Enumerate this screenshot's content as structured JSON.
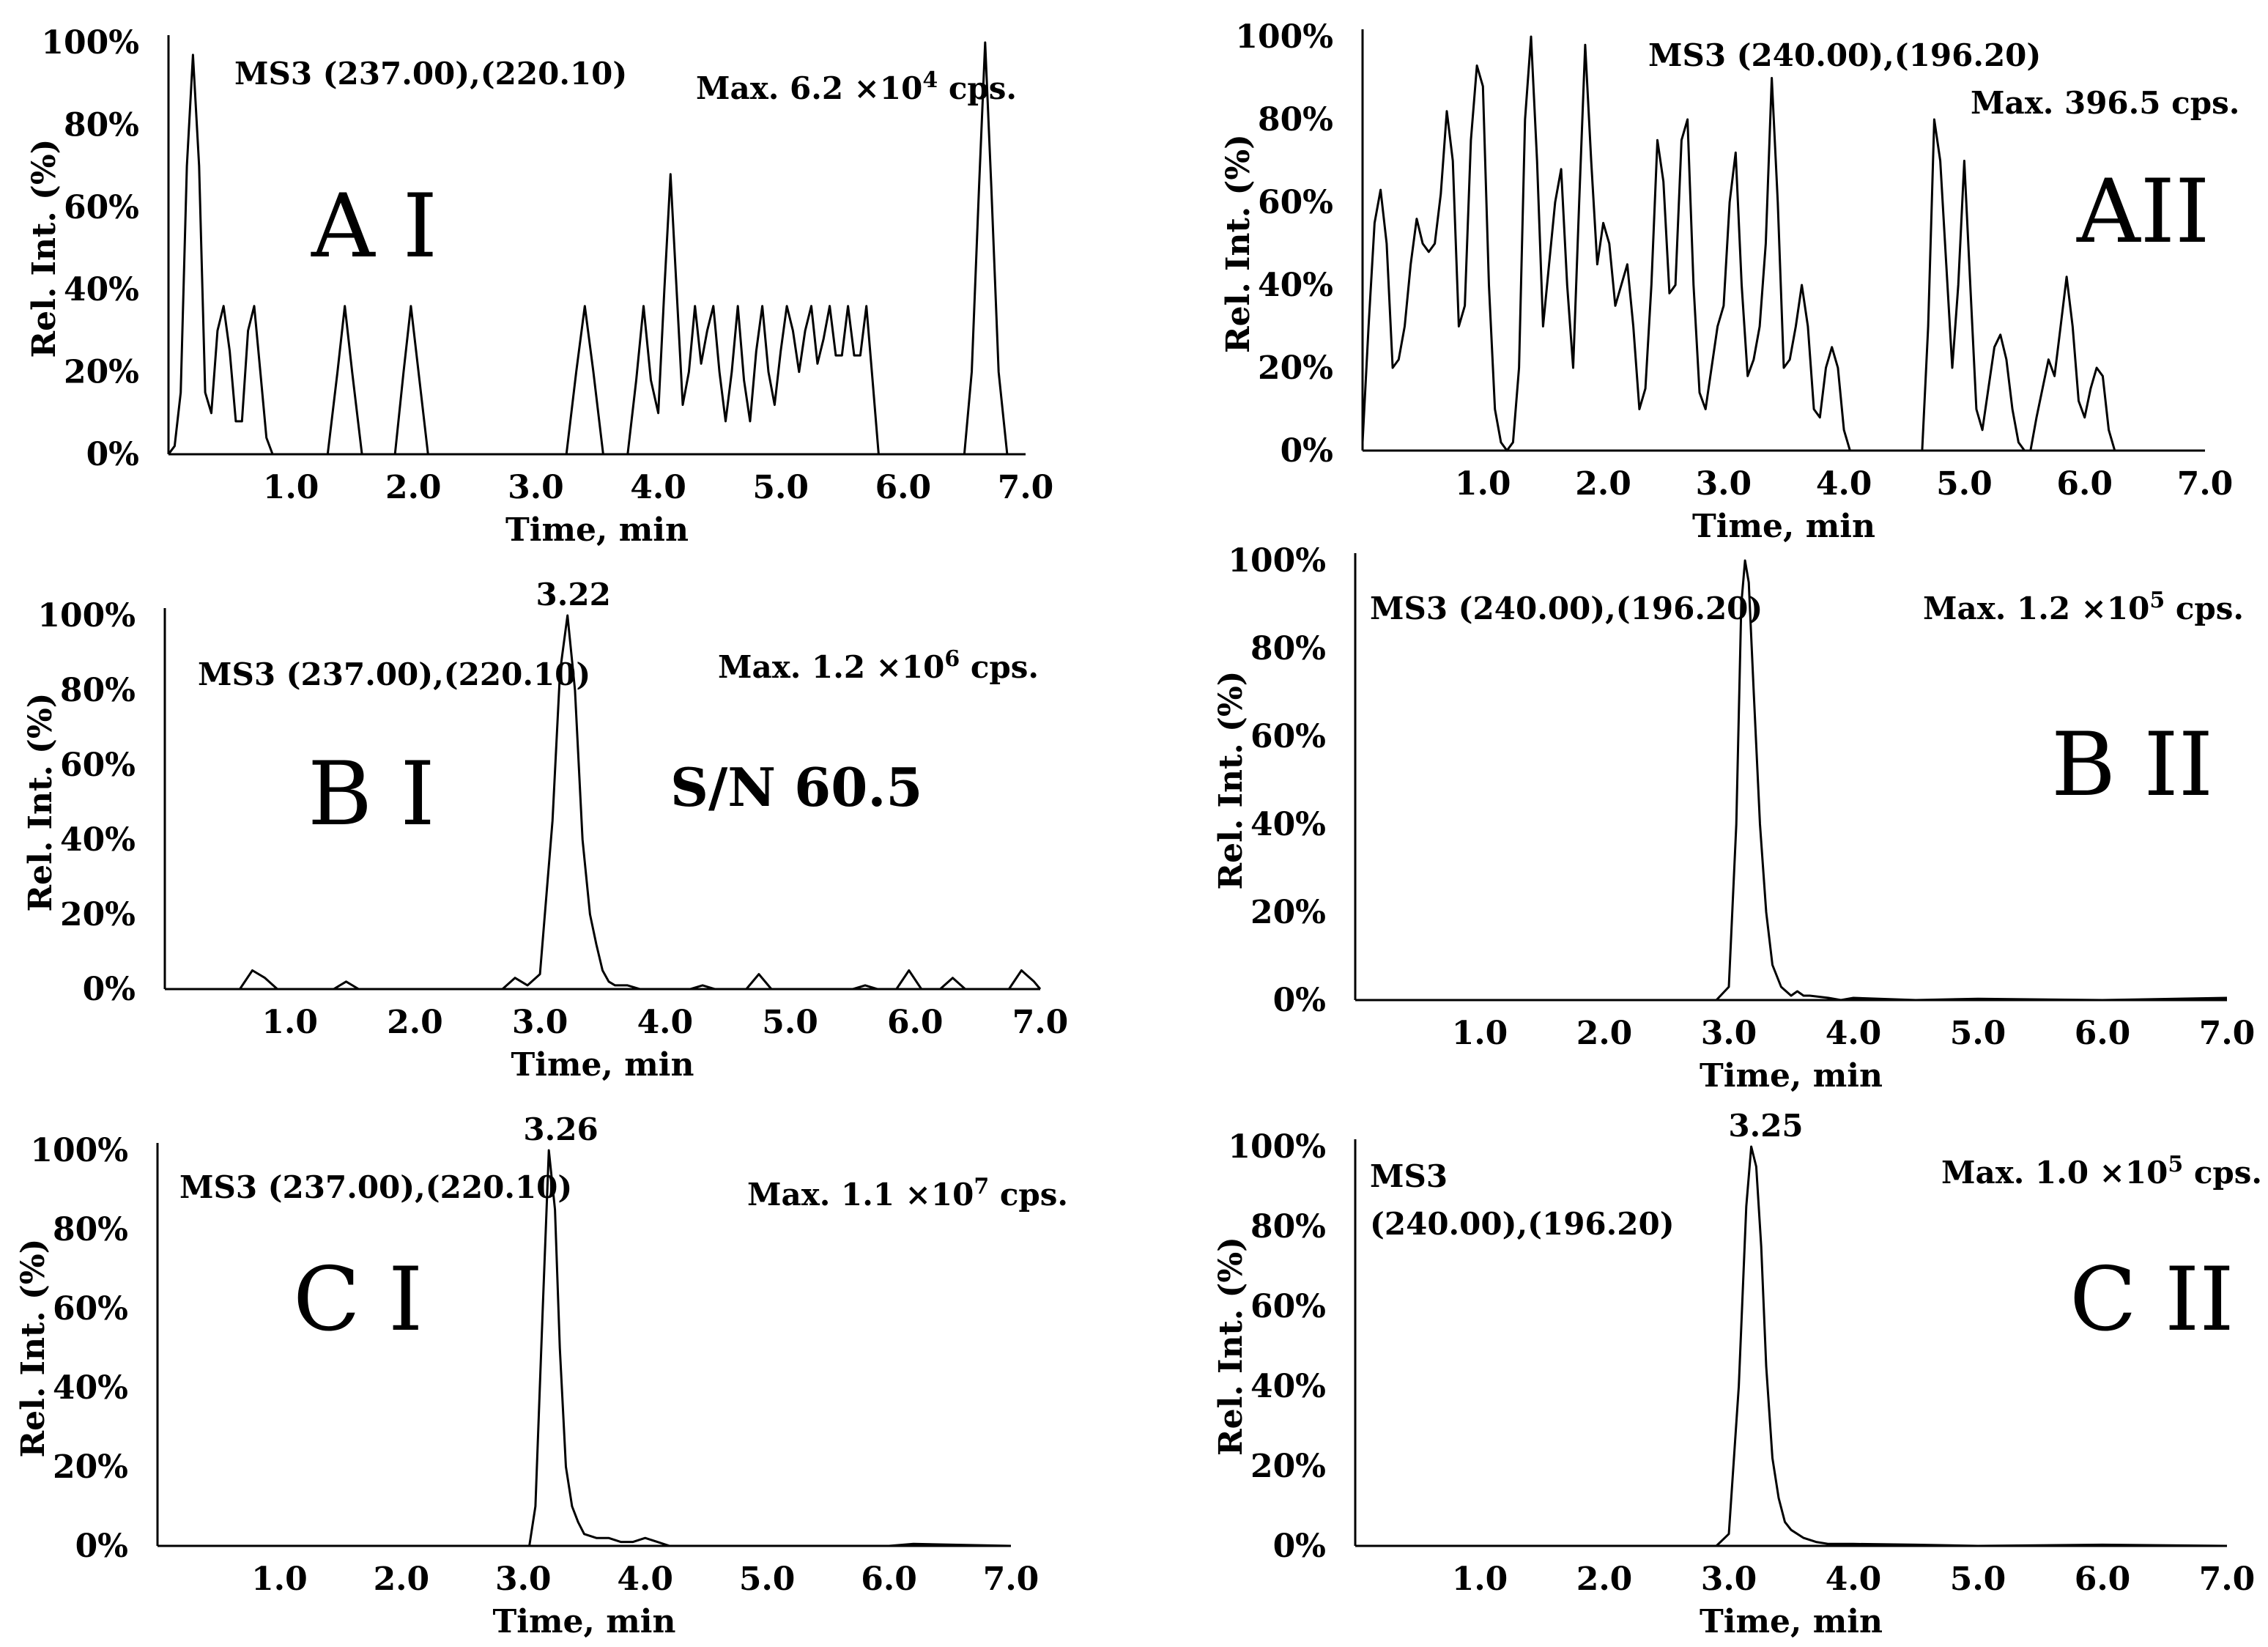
{
  "figure": {
    "x_axis_label": "Time, min",
    "y_axis_label": "Rel. Int. (%)",
    "x_ticks": [
      "1.0",
      "2.0",
      "3.0",
      "4.0",
      "5.0",
      "6.0",
      "7.0"
    ],
    "y_ticks": [
      "0%",
      "20%",
      "40%",
      "60%",
      "80%",
      "100%"
    ]
  },
  "chart_data": [
    {
      "type": "line",
      "panel": "A I",
      "title": "MS3 (237.00),(220.10)",
      "max_prefix": "Max. 6.2 ×10",
      "max_exp": "4",
      "max_suffix": " cps.",
      "xlabel": "Time, min",
      "ylabel": "Rel. Int. (%)",
      "xlim": [
        0,
        7.0
      ],
      "ylim": [
        0,
        100
      ],
      "peak_label": "",
      "sn": "",
      "x": [
        0.0,
        0.05,
        0.1,
        0.15,
        0.2,
        0.25,
        0.3,
        0.35,
        0.4,
        0.45,
        0.5,
        0.55,
        0.6,
        0.65,
        0.7,
        0.75,
        0.8,
        0.85,
        1.3,
        1.38,
        1.44,
        1.5,
        1.58,
        1.85,
        1.92,
        1.98,
        2.05,
        2.12,
        3.25,
        3.33,
        3.4,
        3.47,
        3.55,
        3.75,
        3.82,
        3.88,
        3.94,
        4.0,
        4.05,
        4.1,
        4.15,
        4.2,
        4.25,
        4.3,
        4.35,
        4.4,
        4.45,
        4.5,
        4.55,
        4.6,
        4.65,
        4.7,
        4.75,
        4.8,
        4.85,
        4.9,
        4.95,
        5.0,
        5.05,
        5.1,
        5.15,
        5.2,
        5.25,
        5.3,
        5.35,
        5.4,
        5.45,
        5.5,
        5.55,
        5.6,
        5.65,
        5.7,
        5.75,
        5.8,
        5.85,
        5.95,
        6.5,
        6.56,
        6.62,
        6.67,
        6.72,
        6.78,
        6.85
      ],
      "y": [
        0,
        2,
        15,
        70,
        97,
        70,
        15,
        10,
        30,
        36,
        25,
        8,
        8,
        30,
        36,
        20,
        4,
        0,
        0,
        20,
        36,
        20,
        0,
        0,
        20,
        36,
        18,
        0,
        0,
        20,
        36,
        20,
        0,
        0,
        18,
        36,
        18,
        10,
        40,
        68,
        40,
        12,
        20,
        36,
        22,
        30,
        36,
        20,
        8,
        20,
        36,
        18,
        8,
        25,
        36,
        20,
        12,
        25,
        36,
        30,
        20,
        30,
        36,
        22,
        28,
        36,
        24,
        24,
        36,
        24,
        24,
        36,
        18,
        0,
        0,
        0,
        0,
        20,
        65,
        100,
        65,
        20,
        0
      ]
    },
    {
      "type": "line",
      "panel": "AII",
      "title": "MS3 (240.00),(196.20)",
      "max_prefix": "Max. 396.5 cps.",
      "max_exp": "",
      "max_suffix": "",
      "xlabel": "Time, min",
      "ylabel": "Rel. Int. (%)",
      "xlim": [
        0,
        7.0
      ],
      "ylim": [
        0,
        100
      ],
      "peak_label": "",
      "sn": "",
      "x": [
        0.0,
        0.05,
        0.1,
        0.15,
        0.2,
        0.25,
        0.3,
        0.35,
        0.4,
        0.45,
        0.5,
        0.55,
        0.6,
        0.65,
        0.7,
        0.75,
        0.8,
        0.85,
        0.9,
        0.95,
        1.0,
        1.05,
        1.1,
        1.15,
        1.2,
        1.25,
        1.3,
        1.35,
        1.4,
        1.45,
        1.5,
        1.55,
        1.6,
        1.65,
        1.7,
        1.75,
        1.8,
        1.85,
        1.9,
        1.95,
        2.0,
        2.05,
        2.1,
        2.15,
        2.2,
        2.25,
        2.3,
        2.35,
        2.4,
        2.45,
        2.5,
        2.55,
        2.6,
        2.65,
        2.7,
        2.75,
        2.8,
        2.85,
        2.9,
        2.95,
        3.0,
        3.05,
        3.1,
        3.15,
        3.2,
        3.25,
        3.3,
        3.35,
        3.4,
        3.45,
        3.5,
        3.55,
        3.6,
        3.65,
        3.7,
        3.75,
        3.8,
        3.85,
        3.9,
        3.95,
        4.0,
        4.05,
        4.1,
        4.15,
        4.2,
        4.25,
        4.3,
        4.35,
        4.4,
        4.45,
        4.5,
        4.55,
        4.6,
        4.65,
        4.7,
        4.75,
        4.8,
        4.85,
        4.9,
        4.95,
        5.0,
        5.05,
        5.1,
        5.15,
        5.2,
        5.25,
        5.3,
        5.35,
        5.4,
        5.45,
        5.5,
        5.55,
        5.6,
        5.65,
        5.7,
        5.75,
        5.8,
        5.85,
        5.9,
        5.95,
        6.0,
        6.05,
        6.1,
        6.15,
        6.2,
        6.25,
        6.3,
        6.35,
        6.4,
        6.45,
        6.5,
        6.55,
        6.6,
        6.65,
        6.7,
        6.75
      ],
      "y": [
        2,
        30,
        55,
        63,
        50,
        20,
        22,
        30,
        45,
        56,
        50,
        48,
        50,
        62,
        82,
        70,
        30,
        35,
        75,
        93,
        88,
        40,
        10,
        2,
        0,
        2,
        20,
        80,
        100,
        70,
        30,
        45,
        60,
        68,
        40,
        20,
        60,
        98,
        70,
        45,
        55,
        50,
        35,
        40,
        45,
        30,
        10,
        15,
        40,
        75,
        65,
        38,
        40,
        75,
        80,
        40,
        14,
        10,
        20,
        30,
        35,
        60,
        72,
        40,
        18,
        22,
        30,
        50,
        90,
        60,
        20,
        22,
        30,
        40,
        30,
        10,
        8,
        20,
        25,
        20,
        5,
        0,
        0,
        0,
        0,
        0,
        0,
        0,
        0,
        0,
        0,
        0,
        0,
        0,
        30,
        80,
        70,
        45,
        20,
        40,
        70,
        40,
        10,
        5,
        15,
        25,
        28,
        22,
        10,
        2,
        0,
        0,
        8,
        15,
        22,
        18,
        30,
        42,
        30,
        12,
        8,
        15,
        20,
        18,
        5,
        0,
        0,
        0,
        0,
        0,
        0,
        0,
        0,
        0,
        0,
        0
      ],
      "xlim_note": ""
    },
    {
      "type": "line",
      "panel": "B I",
      "title": "MS3 (237.00),(220.10)",
      "max_prefix": "Max. 1.2 ×10",
      "max_exp": "6",
      "max_suffix": " cps.",
      "xlabel": "Time, min",
      "ylabel": "Rel. Int. (%)",
      "xlim": [
        0,
        7.0
      ],
      "ylim": [
        0,
        100
      ],
      "peak_label": "3.22",
      "peak_x": 3.22,
      "sn": "S/N 60.5",
      "x": [
        0.0,
        0.6,
        0.7,
        0.8,
        0.9,
        1.35,
        1.45,
        1.55,
        2.7,
        2.8,
        2.9,
        3.0,
        3.1,
        3.16,
        3.22,
        3.28,
        3.34,
        3.4,
        3.45,
        3.5,
        3.55,
        3.6,
        3.7,
        3.8,
        4.2,
        4.3,
        4.4,
        4.65,
        4.75,
        4.85,
        5.5,
        5.6,
        5.7,
        5.85,
        5.95,
        6.05,
        6.2,
        6.3,
        6.4,
        6.75,
        6.85,
        6.95,
        7.0
      ],
      "y": [
        0,
        0,
        5,
        3,
        0,
        0,
        2,
        0,
        0,
        3,
        1,
        4,
        45,
        85,
        100,
        80,
        40,
        20,
        12,
        5,
        2,
        1,
        1,
        0,
        0,
        1,
        0,
        0,
        4,
        0,
        0,
        1,
        0,
        0,
        5,
        0,
        0,
        3,
        0,
        0,
        5,
        2,
        0
      ]
    },
    {
      "type": "line",
      "panel": "B II",
      "title": "MS3 (240.00),(196.20)",
      "max_prefix": "Max. 1.2 ×10",
      "max_exp": "5",
      "max_suffix": " cps.",
      "xlabel": "Time, min",
      "ylabel": "Rel. Int. (%)",
      "xlim": [
        0,
        7.0
      ],
      "ylim": [
        0,
        100
      ],
      "peak_label": "",
      "sn": "",
      "x": [
        0.0,
        2.9,
        3.0,
        3.06,
        3.1,
        3.13,
        3.16,
        3.2,
        3.25,
        3.3,
        3.35,
        3.42,
        3.5,
        3.55,
        3.6,
        3.65,
        3.8,
        3.9,
        4.0,
        4.5,
        5.0,
        6.0,
        7.0
      ],
      "y": [
        0,
        0,
        3,
        40,
        90,
        100,
        95,
        70,
        40,
        20,
        8,
        3,
        1,
        2,
        1,
        1,
        0.5,
        0,
        0.5,
        0,
        0.3,
        0,
        0.5
      ]
    },
    {
      "type": "line",
      "panel": "C I",
      "title": "MS3 (237.00),(220.10)",
      "max_prefix": "Max. 1.1 ×10",
      "max_exp": "7",
      "max_suffix": " cps.",
      "xlabel": "Time, min",
      "ylabel": "Rel. Int. (%)",
      "xlim": [
        0,
        7.0
      ],
      "ylim": [
        0,
        100
      ],
      "peak_label": "3.26",
      "peak_x": 3.26,
      "sn": "",
      "x": [
        0.0,
        3.05,
        3.1,
        3.16,
        3.21,
        3.26,
        3.3,
        3.35,
        3.4,
        3.45,
        3.5,
        3.6,
        3.7,
        3.8,
        3.9,
        4.0,
        4.1,
        4.2,
        5.0,
        6.0,
        6.2,
        7.0
      ],
      "y": [
        0,
        0,
        10,
        60,
        100,
        85,
        50,
        20,
        10,
        6,
        3,
        2,
        2,
        1,
        1,
        2,
        1,
        0,
        0,
        0,
        0.5,
        0
      ]
    },
    {
      "type": "line",
      "panel": "C II",
      "title": "MS3",
      "title2": "(240.00),(196.20)",
      "max_prefix": "Max. 1.0 ×10",
      "max_exp": "5",
      "max_suffix": " cps.",
      "xlabel": "Time, min",
      "ylabel": "Rel. Int. (%)",
      "xlim": [
        0,
        7.0
      ],
      "ylim": [
        0,
        100
      ],
      "peak_label": "3.25",
      "peak_x": 3.25,
      "sn": "",
      "x": [
        0.0,
        2.9,
        3.0,
        3.08,
        3.14,
        3.18,
        3.22,
        3.26,
        3.3,
        3.35,
        3.4,
        3.45,
        3.5,
        3.6,
        3.7,
        3.8,
        3.9,
        4.0,
        4.5,
        5.0,
        6.0,
        7.0
      ],
      "y": [
        0,
        0,
        3,
        40,
        85,
        100,
        95,
        75,
        45,
        22,
        12,
        6,
        4,
        2,
        1,
        0.5,
        0.5,
        0.5,
        0.3,
        0,
        0.3,
        0
      ]
    }
  ]
}
